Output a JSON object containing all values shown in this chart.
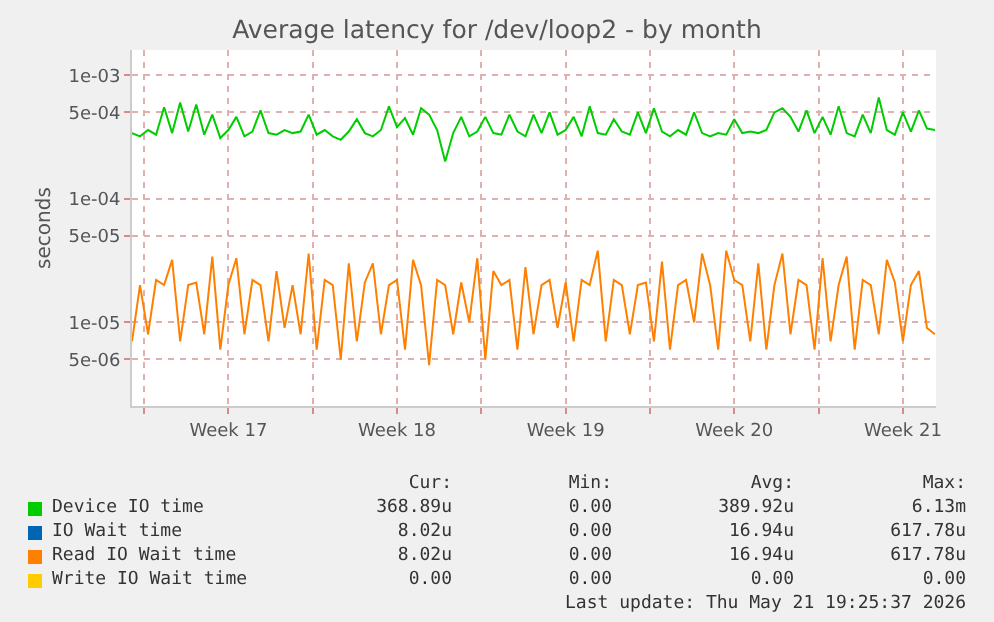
{
  "chart_data": {
    "type": "line",
    "title": "Average latency for /dev/loop2 - by month",
    "ylabel": "seconds",
    "log": "y",
    "grid": true,
    "legend": "bottom",
    "x": [
      "2026-04-19T12:00",
      "2026-04-19T20:00",
      "2026-04-20T04:00",
      "2026-04-20T12:00",
      "2026-04-20T20:00",
      "2026-04-21T04:00",
      "2026-04-21T12:00",
      "2026-04-21T20:00",
      "2026-04-22T04:00",
      "2026-04-22T12:00",
      "2026-04-22T20:00",
      "2026-04-23T04:00",
      "2026-04-23T12:00",
      "2026-04-23T20:00",
      "2026-04-24T04:00",
      "2026-04-24T12:00",
      "2026-04-24T20:00",
      "2026-04-25T04:00",
      "2026-04-25T12:00",
      "2026-04-25T20:00",
      "2026-04-26T04:00",
      "2026-04-26T12:00",
      "2026-04-26T20:00",
      "2026-04-27T04:00",
      "2026-04-27T12:00",
      "2026-04-27T20:00",
      "2026-04-28T04:00",
      "2026-04-28T12:00",
      "2026-04-28T20:00",
      "2026-04-29T04:00",
      "2026-04-29T12:00",
      "2026-04-29T20:00",
      "2026-04-30T04:00",
      "2026-04-30T12:00",
      "2026-04-30T20:00",
      "2026-05-01T04:00",
      "2026-05-01T12:00",
      "2026-05-01T20:00",
      "2026-05-02T04:00",
      "2026-05-02T12:00",
      "2026-05-02T20:00",
      "2026-05-03T04:00",
      "2026-05-03T12:00",
      "2026-05-03T20:00",
      "2026-05-04T04:00",
      "2026-05-04T12:00",
      "2026-05-04T20:00",
      "2026-05-05T04:00",
      "2026-05-05T12:00",
      "2026-05-05T20:00",
      "2026-05-06T04:00",
      "2026-05-06T12:00",
      "2026-05-06T20:00",
      "2026-05-07T04:00",
      "2026-05-07T12:00",
      "2026-05-07T20:00",
      "2026-05-08T04:00",
      "2026-05-08T12:00",
      "2026-05-08T20:00",
      "2026-05-09T04:00",
      "2026-05-09T12:00",
      "2026-05-09T20:00",
      "2026-05-10T04:00",
      "2026-05-10T12:00",
      "2026-05-10T20:00",
      "2026-05-11T04:00",
      "2026-05-11T12:00",
      "2026-05-11T20:00",
      "2026-05-12T04:00",
      "2026-05-12T12:00",
      "2026-05-12T20:00",
      "2026-05-13T04:00",
      "2026-05-13T12:00",
      "2026-05-13T20:00",
      "2026-05-14T04:00",
      "2026-05-14T12:00",
      "2026-05-14T20:00",
      "2026-05-15T04:00",
      "2026-05-15T12:00",
      "2026-05-15T20:00",
      "2026-05-16T04:00",
      "2026-05-16T12:00",
      "2026-05-16T20:00",
      "2026-05-17T04:00",
      "2026-05-17T12:00",
      "2026-05-17T20:00",
      "2026-05-18T04:00",
      "2026-05-18T12:00",
      "2026-05-18T20:00",
      "2026-05-19T04:00",
      "2026-05-19T12:00",
      "2026-05-19T20:00",
      "2026-05-20T04:00",
      "2026-05-20T12:00",
      "2026-05-20T20:00",
      "2026-05-21T04:00",
      "2026-05-21T12:00",
      "2026-05-21T20:00",
      "2026-05-22T04:00",
      "2026-05-22T12:00",
      "2026-05-22T20:00"
    ],
    "xlim": [
      "2026-04-19T12:00",
      "2026-05-22T21:00"
    ],
    "xticks": [
      {
        "value": "2026-04-20",
        "label": null
      },
      {
        "value": "2026-04-23T12:00",
        "label": "Week 17"
      },
      {
        "value": "2026-04-27",
        "label": null
      },
      {
        "value": "2026-04-30T12:00",
        "label": "Week 18"
      },
      {
        "value": "2026-05-04",
        "label": null
      },
      {
        "value": "2026-05-07T12:00",
        "label": "Week 19"
      },
      {
        "value": "2026-05-11",
        "label": null
      },
      {
        "value": "2026-05-14T12:00",
        "label": "Week 20"
      },
      {
        "value": "2026-05-18",
        "label": null
      },
      {
        "value": "2026-05-21T12:00",
        "label": "Week 21"
      }
    ],
    "ylim": [
      2.1e-06,
      0.0016
    ],
    "yticks": [
      {
        "value": 5e-06,
        "label": "5e-06"
      },
      {
        "value": 1e-05,
        "label": "1e-05"
      },
      {
        "value": 5e-05,
        "label": "5e-05"
      },
      {
        "value": 0.0001,
        "label": "1e-04"
      },
      {
        "value": 0.0005,
        "label": "5e-04"
      },
      {
        "value": 0.001,
        "label": "1e-03"
      }
    ],
    "series": [
      {
        "name": "Device IO time",
        "color": "#00cc00",
        "values": [
          0.00034,
          0.00032,
          0.00036,
          0.00033,
          0.00055,
          0.00034,
          0.0006,
          0.00035,
          0.00058,
          0.00033,
          0.00048,
          0.00031,
          0.00036,
          0.00046,
          0.00032,
          0.00035,
          0.00052,
          0.00034,
          0.00033,
          0.00036,
          0.00034,
          0.00035,
          0.00048,
          0.00033,
          0.00036,
          0.00032,
          0.0003,
          0.00035,
          0.00044,
          0.00034,
          0.00032,
          0.00036,
          0.00056,
          0.00038,
          0.00045,
          0.00033,
          0.00054,
          0.00048,
          0.00036,
          0.0002,
          0.00034,
          0.00046,
          0.00032,
          0.00035,
          0.00046,
          0.00034,
          0.00033,
          0.00048,
          0.00035,
          0.00032,
          0.00048,
          0.00034,
          0.0005,
          0.00033,
          0.00036,
          0.00046,
          0.00032,
          0.00056,
          0.00034,
          0.00033,
          0.00044,
          0.00035,
          0.00033,
          0.0005,
          0.00034,
          0.00054,
          0.00035,
          0.00032,
          0.00036,
          0.00033,
          0.0005,
          0.00034,
          0.00032,
          0.00034,
          0.00033,
          0.00044,
          0.00034,
          0.00035,
          0.00034,
          0.00036,
          0.0005,
          0.00054,
          0.00046,
          0.00035,
          0.00052,
          0.00034,
          0.00046,
          0.00033,
          0.00056,
          0.00034,
          0.00032,
          0.00048,
          0.00034,
          0.00066,
          0.00036,
          0.00033,
          0.0005,
          0.00035,
          0.00052,
          0.00037,
          0.00036
        ]
      },
      {
        "name": "IO Wait time",
        "color": "#0066b3",
        "values": [
          null,
          null,
          null,
          null,
          null,
          null,
          null,
          null,
          null,
          null,
          null,
          null,
          null,
          null,
          null,
          null,
          null,
          null,
          null,
          null,
          null,
          null,
          null,
          null,
          null,
          null,
          null,
          null,
          null,
          null,
          null,
          null,
          null,
          null,
          null,
          null,
          null,
          null,
          null,
          null,
          null,
          null,
          null,
          null,
          null,
          null,
          null,
          null,
          null,
          null,
          null,
          null,
          null,
          null,
          null,
          null,
          null,
          null,
          null,
          null,
          null,
          null,
          null,
          null,
          null,
          null,
          null,
          null,
          null,
          null,
          null,
          null,
          null,
          null,
          null,
          null,
          null,
          null,
          null,
          null,
          null,
          null,
          null,
          null,
          null,
          null,
          null,
          null,
          null,
          null,
          null,
          null,
          null,
          null,
          null,
          null,
          null,
          null,
          null,
          null,
          null
        ]
      },
      {
        "name": "Read IO Wait time",
        "color": "#ff8000",
        "values": [
          7e-06,
          2e-05,
          8e-06,
          2.2e-05,
          2e-05,
          3.2e-05,
          7e-06,
          2e-05,
          2.1e-05,
          8e-06,
          3.4e-05,
          6e-06,
          2e-05,
          3.3e-05,
          8e-06,
          2.2e-05,
          2e-05,
          7e-06,
          2.6e-05,
          9e-06,
          2e-05,
          8e-06,
          3.6e-05,
          6e-06,
          2.2e-05,
          2e-05,
          5e-06,
          3e-05,
          7e-06,
          2.1e-05,
          3e-05,
          8e-06,
          2e-05,
          2.2e-05,
          6e-06,
          3.2e-05,
          2e-05,
          4.5e-06,
          2.2e-05,
          2e-05,
          8e-06,
          2.1e-05,
          1e-05,
          3.3e-05,
          5e-06,
          2.6e-05,
          2e-05,
          2.2e-05,
          6e-06,
          2.8e-05,
          8e-06,
          2e-05,
          2.2e-05,
          9e-06,
          2.1e-05,
          7e-06,
          2.2e-05,
          2e-05,
          3.8e-05,
          7e-06,
          2.2e-05,
          2e-05,
          8e-06,
          2e-05,
          2.1e-05,
          7e-06,
          3.1e-05,
          6e-06,
          2e-05,
          2.2e-05,
          1e-05,
          3.6e-05,
          2e-05,
          6e-06,
          3.8e-05,
          2.2e-05,
          2e-05,
          7e-06,
          3e-05,
          6e-06,
          2e-05,
          3.6e-05,
          8e-06,
          2.2e-05,
          2e-05,
          6e-06,
          3.3e-05,
          7e-06,
          2e-05,
          3.4e-05,
          6e-06,
          2.2e-05,
          2e-05,
          8e-06,
          3.2e-05,
          2.1e-05,
          7e-06,
          2e-05,
          2.6e-05,
          9e-06,
          8e-06
        ]
      },
      {
        "name": "Write IO Wait time",
        "color": "#ffcc00",
        "values": [
          null,
          null,
          null,
          null,
          null,
          null,
          null,
          null,
          null,
          null,
          null,
          null,
          null,
          null,
          null,
          null,
          null,
          null,
          null,
          null,
          null,
          null,
          null,
          null,
          null,
          null,
          null,
          null,
          null,
          null,
          null,
          null,
          null,
          null,
          null,
          null,
          null,
          null,
          null,
          null,
          null,
          null,
          null,
          null,
          null,
          null,
          null,
          null,
          null,
          null,
          null,
          null,
          null,
          null,
          null,
          null,
          null,
          null,
          null,
          null,
          null,
          null,
          null,
          null,
          null,
          null,
          null,
          null,
          null,
          null,
          null,
          null,
          null,
          null,
          null,
          null,
          null,
          null,
          null,
          null,
          null,
          null,
          null,
          null,
          null,
          null,
          null,
          null,
          null,
          null,
          null,
          null,
          null,
          null,
          null,
          null,
          null,
          null,
          null,
          null,
          null
        ]
      }
    ],
    "annotations": [
      "Cur:",
      "Min:",
      "Avg:",
      "Max:",
      "368.89u",
      "0.00",
      "389.92u",
      "6.13m",
      "8.02u",
      "0.00",
      "16.94u",
      "617.78u",
      "8.02u",
      "0.00",
      "16.94u",
      "617.78u",
      "0.00",
      "0.00",
      "0.00",
      "0.00",
      "Last update: Thu May 21 19:25:37 2026"
    ]
  }
}
